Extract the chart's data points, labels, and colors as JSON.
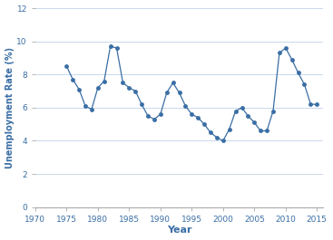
{
  "years": [
    1975,
    1976,
    1977,
    1978,
    1979,
    1980,
    1981,
    1982,
    1983,
    1984,
    1985,
    1986,
    1987,
    1988,
    1989,
    1990,
    1991,
    1992,
    1993,
    1994,
    1995,
    1996,
    1997,
    1998,
    1999,
    2000,
    2001,
    2002,
    2003,
    2004,
    2005,
    2006,
    2007,
    2008,
    2009,
    2010,
    2011,
    2012,
    2013,
    2014,
    2015
  ],
  "unemployment": [
    8.5,
    7.7,
    7.1,
    6.1,
    5.9,
    7.2,
    7.6,
    9.7,
    9.6,
    7.5,
    7.2,
    7.0,
    6.2,
    5.5,
    5.3,
    5.6,
    6.9,
    7.5,
    6.9,
    6.1,
    5.6,
    5.4,
    5.0,
    4.5,
    4.2,
    4.0,
    4.7,
    5.8,
    6.0,
    5.5,
    5.1,
    4.6,
    4.6,
    5.8,
    9.3,
    9.6,
    8.9,
    8.1,
    7.4,
    6.2,
    6.2
  ],
  "line_color": "#3a6ea5",
  "marker_color": "#3a6ea5",
  "xlabel": "Year",
  "ylabel": "Unemployment Rate (%)",
  "xlim": [
    1970,
    2016
  ],
  "ylim": [
    0,
    12
  ],
  "xticks": [
    1970,
    1975,
    1980,
    1985,
    1990,
    1995,
    2000,
    2005,
    2010,
    2015
  ],
  "yticks": [
    0,
    2,
    4,
    6,
    8,
    10,
    12
  ],
  "label_color": "#3a6ea5",
  "tick_color": "#3a6ea5",
  "grid_color": "#c8d8ea",
  "spine_color": "#aaaaaa",
  "background_color": "#ffffff"
}
